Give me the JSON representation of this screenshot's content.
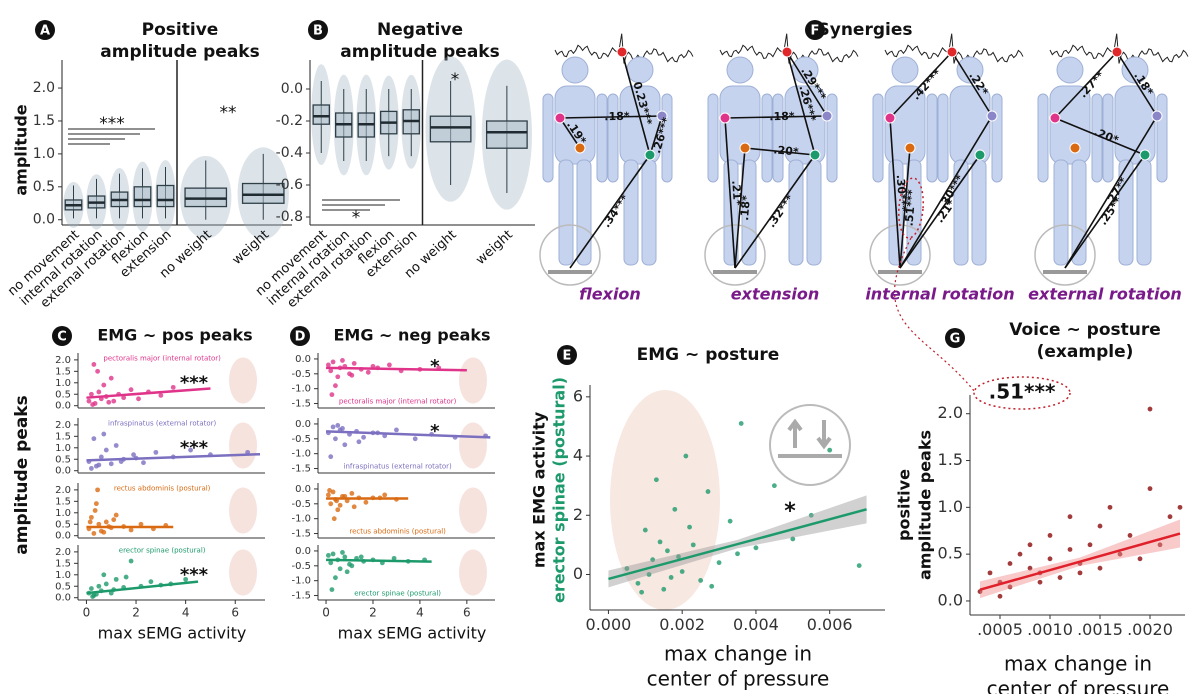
{
  "chart_data": [
    {
      "type": "box",
      "letter": "A",
      "title": [
        "Positive",
        "amplitude peaks"
      ],
      "ylabel": "amplitude",
      "ylim": [
        -0.08,
        2.35
      ],
      "yticks": [
        {
          "value": 0,
          "label": "0.0"
        },
        0.5,
        {
          "value": 1,
          "label": "1.0"
        },
        1.5,
        {
          "value": 2,
          "label": "2.0"
        }
      ],
      "groups": [
        {
          "categories": [
            "no movement",
            "internal rotation",
            "external rotation",
            "flexion",
            "extension"
          ],
          "significance": "***",
          "boxes": [
            {
              "low": 0.02,
              "q1": 0.15,
              "median": 0.22,
              "q3": 0.3,
              "high": 0.52
            },
            {
              "low": 0.02,
              "q1": 0.18,
              "median": 0.26,
              "q3": 0.36,
              "high": 0.62
            },
            {
              "low": 0.02,
              "q1": 0.2,
              "median": 0.3,
              "q3": 0.42,
              "high": 0.7
            },
            {
              "low": 0.02,
              "q1": 0.2,
              "median": 0.3,
              "q3": 0.5,
              "high": 0.78
            },
            {
              "low": 0.02,
              "q1": 0.2,
              "median": 0.3,
              "q3": 0.52,
              "high": 0.8
            }
          ]
        },
        {
          "categories": [
            "no weight",
            "weight"
          ],
          "significance": "**",
          "boxes": [
            {
              "low": 0.0,
              "q1": 0.2,
              "median": 0.32,
              "q3": 0.48,
              "high": 0.9
            },
            {
              "low": 0.0,
              "q1": 0.25,
              "median": 0.38,
              "q3": 0.55,
              "high": 1.0
            }
          ]
        }
      ]
    },
    {
      "type": "box",
      "letter": "B",
      "title": [
        "Negative",
        "amplitude peaks"
      ],
      "ylim": [
        -0.85,
        0.15
      ],
      "yticks": [
        {
          "value": 0,
          "label": "0.0"
        },
        -0.2,
        -0.4,
        -0.6,
        -0.8
      ],
      "groups": [
        {
          "categories": [
            "no movement",
            "internal rotation",
            "external rotation",
            "flexion",
            "extension"
          ],
          "significance": "*",
          "boxes": [
            {
              "low": -0.4,
              "q1": -0.22,
              "median": -0.17,
              "q3": -0.1,
              "high": 0.05
            },
            {
              "low": -0.45,
              "q1": -0.3,
              "median": -0.22,
              "q3": -0.15,
              "high": 0.0
            },
            {
              "low": -0.45,
              "q1": -0.3,
              "median": -0.22,
              "q3": -0.15,
              "high": 0.0
            },
            {
              "low": -0.42,
              "q1": -0.28,
              "median": -0.21,
              "q3": -0.14,
              "high": 0.0
            },
            {
              "low": -0.42,
              "q1": -0.28,
              "median": -0.2,
              "q3": -0.13,
              "high": 0.0
            }
          ]
        },
        {
          "categories": [
            "no weight",
            "weight"
          ],
          "significance": "*",
          "boxes": [
            {
              "low": -0.6,
              "q1": -0.33,
              "median": -0.24,
              "q3": -0.17,
              "high": 0.05
            },
            {
              "low": -0.65,
              "q1": -0.37,
              "median": -0.27,
              "q3": -0.2,
              "high": 0.02
            }
          ]
        }
      ]
    },
    {
      "type": "scatter",
      "letter": "C",
      "title": [
        "EMG ~ pos peaks"
      ],
      "ylabel": [
        "amplitude peaks"
      ],
      "xlabel": [
        "max sEMG activity"
      ],
      "xlim": [
        -0.3,
        7.2
      ],
      "xticks": [
        0,
        2,
        4,
        6
      ],
      "ylim": [
        -0.1,
        2.3
      ],
      "yticks": [
        {
          "value": 0,
          "label": "0.0"
        },
        0.5,
        {
          "value": 1,
          "label": "1.0"
        },
        1.5,
        {
          "value": 2,
          "label": "2.0"
        }
      ],
      "subplots": [
        {
          "label": "pectoralis major (internal rotator)",
          "color": "#e0338a",
          "significance": "***",
          "x": [
            0.1,
            0.2,
            0.3,
            0.35,
            0.5,
            0.6,
            0.7,
            0.8,
            1.0,
            1.1,
            1.3,
            1.5,
            1.8,
            2.1,
            2.5,
            3.0,
            3.5,
            0.25,
            0.45,
            0.9
          ],
          "y": [
            0.2,
            0.5,
            1.8,
            0.1,
            0.6,
            0.3,
            0.9,
            0.4,
            1.2,
            0.2,
            0.5,
            0.35,
            0.7,
            0.3,
            0.6,
            0.45,
            0.8,
            0.05,
            1.5,
            0.15
          ],
          "fit_x": [
            0,
            5
          ],
          "fit_y": [
            0.35,
            0.75
          ]
        },
        {
          "label": "infraspinatus (external rotator)",
          "color": "#7b6fc0",
          "significance": "***",
          "x": [
            0.1,
            0.3,
            0.4,
            0.6,
            0.8,
            1.0,
            1.2,
            1.5,
            1.9,
            2.3,
            2.8,
            3.5,
            4.2,
            5.0,
            6.5,
            0.2,
            0.7,
            1.4,
            0.5,
            2.0
          ],
          "y": [
            0.4,
            1.4,
            0.2,
            0.6,
            0.9,
            0.3,
            1.1,
            0.5,
            0.7,
            0.35,
            0.8,
            0.6,
            0.9,
            0.7,
            0.8,
            0.1,
            1.6,
            0.4,
            0.25,
            0.55
          ],
          "fit_x": [
            0,
            7
          ],
          "fit_y": [
            0.45,
            0.72
          ]
        },
        {
          "label": "rectus abdominis (postural)",
          "color": "#d96a12",
          "x": [
            0.1,
            0.2,
            0.3,
            0.4,
            0.5,
            0.6,
            0.8,
            1.0,
            1.2,
            1.5,
            1.8,
            2.2,
            2.7,
            3.2,
            0.35,
            0.7,
            0.15,
            1.1,
            0.45,
            0.9
          ],
          "y": [
            0.3,
            0.8,
            0.1,
            1.4,
            0.5,
            0.2,
            0.6,
            0.35,
            0.9,
            0.4,
            0.25,
            0.5,
            0.3,
            0.45,
            1.1,
            0.15,
            0.6,
            0.7,
            2.0,
            0.4
          ],
          "fit_x": [
            0,
            3.5
          ],
          "fit_y": [
            0.38,
            0.38
          ]
        },
        {
          "label": "erector spinae (postural)",
          "color": "#1d9a6c",
          "significance": "***",
          "x": [
            0.1,
            0.2,
            0.3,
            0.5,
            0.6,
            0.8,
            1.0,
            1.2,
            1.5,
            1.8,
            2.2,
            2.6,
            3.0,
            3.4,
            4.0,
            0.4,
            0.7,
            1.1,
            0.25,
            1.6
          ],
          "y": [
            0.2,
            0.4,
            0.1,
            0.5,
            0.3,
            0.6,
            0.2,
            0.8,
            0.45,
            1.6,
            0.5,
            0.7,
            0.55,
            0.6,
            0.8,
            0.15,
            1.0,
            0.35,
            0.05,
            0.9
          ],
          "fit_x": [
            0,
            4.5
          ],
          "fit_y": [
            0.2,
            0.7
          ]
        }
      ]
    },
    {
      "type": "scatter",
      "letter": "D",
      "title": [
        "EMG ~ neg peaks"
      ],
      "xlabel": [
        "max sEMG activity"
      ],
      "xlim": [
        -0.3,
        7.2
      ],
      "xticks": [
        0,
        2,
        4,
        6
      ],
      "ylim": [
        -1.65,
        0.2
      ],
      "yticks": [
        {
          "value": 0,
          "label": "0.0"
        },
        -0.5,
        {
          "value": -1,
          "label": "-1.0"
        },
        -1.5
      ],
      "subplots": [
        {
          "label": "pectoralis major (internal rotator)",
          "color": "#e0338a",
          "significance": "*",
          "x": [
            0.1,
            0.2,
            0.3,
            0.5,
            0.6,
            0.8,
            1.0,
            1.2,
            1.5,
            1.8,
            2.2,
            2.7,
            3.2,
            4.0,
            4.8,
            0.4,
            0.7,
            1.1,
            0.25,
            2.0
          ],
          "y": [
            -0.2,
            -0.4,
            -0.1,
            -0.6,
            -0.3,
            -0.25,
            -0.5,
            -0.15,
            -0.35,
            -0.45,
            -0.3,
            -0.2,
            -0.4,
            -0.35,
            -0.3,
            -0.9,
            -0.05,
            -0.55,
            -1.2,
            -0.25
          ],
          "fit_x": [
            0,
            6
          ],
          "fit_y": [
            -0.3,
            -0.38
          ]
        },
        {
          "label": "infraspinatus (external rotator)",
          "color": "#7b6fc0",
          "significance": "*",
          "x": [
            0.1,
            0.3,
            0.4,
            0.6,
            0.8,
            1.0,
            1.3,
            1.6,
            2.0,
            2.5,
            3.0,
            3.8,
            4.5,
            5.5,
            6.8,
            0.2,
            0.7,
            1.4,
            0.5,
            2.2
          ],
          "y": [
            -0.3,
            -0.1,
            -0.5,
            -0.2,
            -0.7,
            -0.35,
            -0.25,
            -0.45,
            -0.3,
            -0.4,
            -0.2,
            -0.5,
            -0.35,
            -0.45,
            -0.4,
            -1.1,
            -0.15,
            -0.6,
            -0.05,
            -0.3
          ],
          "fit_x": [
            0,
            7
          ],
          "fit_y": [
            -0.25,
            -0.45
          ]
        },
        {
          "label": "rectus abdominis (postural)",
          "color": "#d96a12",
          "x": [
            0.1,
            0.2,
            0.3,
            0.4,
            0.5,
            0.7,
            0.9,
            1.1,
            1.4,
            1.7,
            2.0,
            2.5,
            3.0,
            0.35,
            0.6,
            0.15,
            1.2,
            0.45,
            0.8,
            2.3
          ],
          "y": [
            -0.2,
            -0.5,
            -0.1,
            -0.35,
            -0.7,
            -0.25,
            -0.4,
            -0.15,
            -0.3,
            -0.45,
            -0.3,
            -0.2,
            -0.35,
            -1.0,
            -0.55,
            -0.05,
            -0.6,
            -0.4,
            -0.25,
            -0.3
          ],
          "fit_x": [
            0,
            3.5
          ],
          "fit_y": [
            -0.32,
            -0.32
          ]
        },
        {
          "label": "erector spinae (postural)",
          "color": "#1d9a6c",
          "x": [
            0.1,
            0.2,
            0.3,
            0.5,
            0.6,
            0.8,
            1.0,
            1.3,
            1.6,
            2.0,
            2.4,
            2.9,
            3.5,
            4.2,
            0.4,
            0.7,
            1.1,
            0.25,
            1.5,
            0.9
          ],
          "y": [
            -0.15,
            -0.4,
            -0.1,
            -0.3,
            -0.6,
            -0.2,
            -0.45,
            -0.25,
            -0.35,
            -0.3,
            -0.4,
            -0.25,
            -0.35,
            -0.3,
            -0.9,
            -0.05,
            -0.5,
            -1.3,
            -0.2,
            -0.7
          ],
          "fit_x": [
            0,
            4.5
          ],
          "fit_y": [
            -0.3,
            -0.36
          ]
        }
      ]
    },
    {
      "type": "scatter",
      "letter": "E",
      "title": [
        "EMG ~ posture"
      ],
      "ylabel": [
        "max  EMG activity",
        "erector spinae (postural)"
      ],
      "xlabel": [
        "max change in",
        "center of pressure"
      ],
      "annotation": "*",
      "color": "#1d9a6c",
      "fit_color": "#1d9a6c",
      "band_color": "#9a9a9a",
      "xlim": [
        -0.0005,
        0.0075
      ],
      "xticks": [
        {
          "value": 0,
          "label": "0.000"
        },
        0.002,
        0.004,
        0.006
      ],
      "ylim": [
        -1.2,
        6.4
      ],
      "yticks": [
        0,
        2,
        4,
        6
      ],
      "x": [
        0.0005,
        0.0008,
        0.001,
        0.0012,
        0.0013,
        0.0015,
        0.0016,
        0.0018,
        0.002,
        0.0021,
        0.0023,
        0.0025,
        0.0027,
        0.003,
        0.0033,
        0.0036,
        0.004,
        0.0045,
        0.005,
        0.0055,
        0.006,
        0.0068,
        0.0009,
        0.0011,
        0.0014,
        0.0017,
        0.0019,
        0.0022,
        0.0028,
        0.0035
      ],
      "y": [
        0.2,
        -0.3,
        1.5,
        0.5,
        3.2,
        -0.5,
        0.8,
        2.2,
        0.1,
        4.0,
        1.0,
        -0.2,
        2.8,
        0.4,
        1.8,
        5.1,
        0.9,
        3.0,
        1.2,
        2.0,
        4.2,
        0.3,
        -0.6,
        0.0,
        1.1,
        -0.1,
        0.6,
        1.6,
        -0.4,
        0.7
      ],
      "fit_x": [
        0,
        0.007
      ],
      "fit_y": [
        -0.15,
        2.2
      ]
    },
    {
      "type": "scatter",
      "letter": "G",
      "title": [
        "Voice ~ posture",
        "(example)"
      ],
      "ylabel": [
        "positive",
        "amplitude peaks"
      ],
      "xlabel": [
        "max change in",
        "center of pressure"
      ],
      "annotation": ".51***",
      "color": "#8b0a0a",
      "fit_color": "#e0202a",
      "band_color": "#f08a8a",
      "xlim": [
        0.0002,
        0.00235
      ],
      "xticks": [
        {
          "value": 0.0005,
          "label": ".0005"
        },
        {
          "value": 0.001,
          "label": ".0010"
        },
        {
          "value": 0.0015,
          "label": ".0015"
        },
        {
          "value": 0.002,
          "label": ".0020"
        }
      ],
      "ylim": [
        -0.15,
        2.2
      ],
      "yticks": [
        {
          "value": 0,
          "label": "0.0"
        },
        0.5,
        {
          "value": 1,
          "label": "1.0"
        },
        1.5,
        {
          "value": 2,
          "label": "2.0"
        }
      ],
      "x": [
        0.0003,
        0.0004,
        0.0005,
        0.0006,
        0.0006,
        0.0007,
        0.0008,
        0.0008,
        0.0009,
        0.001,
        0.001,
        0.0011,
        0.0012,
        0.0012,
        0.0013,
        0.0014,
        0.0015,
        0.0015,
        0.0016,
        0.0017,
        0.0018,
        0.0019,
        0.002,
        0.002,
        0.0021,
        0.0022,
        0.0023,
        0.0005,
        0.0009,
        0.0013
      ],
      "y": [
        0.1,
        0.3,
        0.2,
        0.4,
        0.15,
        0.5,
        0.35,
        0.6,
        0.3,
        0.45,
        0.7,
        0.25,
        0.55,
        0.9,
        0.4,
        0.6,
        0.35,
        0.8,
        1.0,
        0.5,
        0.7,
        0.45,
        1.2,
        2.05,
        0.6,
        0.9,
        1.0,
        0.05,
        0.2,
        0.3
      ],
      "fit_x": [
        0.0003,
        0.0023
      ],
      "fit_y": [
        0.12,
        0.72
      ]
    }
  ],
  "synergies": {
    "letter": "F",
    "title": "Synergies",
    "figures": [
      {
        "label": "flexion",
        "weights": [
          ".18*",
          ".19*",
          "0.23***",
          ".26***",
          ".34***"
        ]
      },
      {
        "label": "extension",
        "weights": [
          ".21*",
          ".18*",
          ".20*",
          ".26***",
          ".29***",
          ".18*",
          ".32***"
        ]
      },
      {
        "label": "internal rotation",
        "weights": [
          ".42***",
          ".22*",
          ".51***",
          ".30***",
          ".30***",
          ".21*"
        ]
      },
      {
        "label": "external rotation",
        "weights": [
          ".27**",
          ".18*",
          ".20*",
          ".25**",
          ".27**"
        ]
      }
    ]
  }
}
